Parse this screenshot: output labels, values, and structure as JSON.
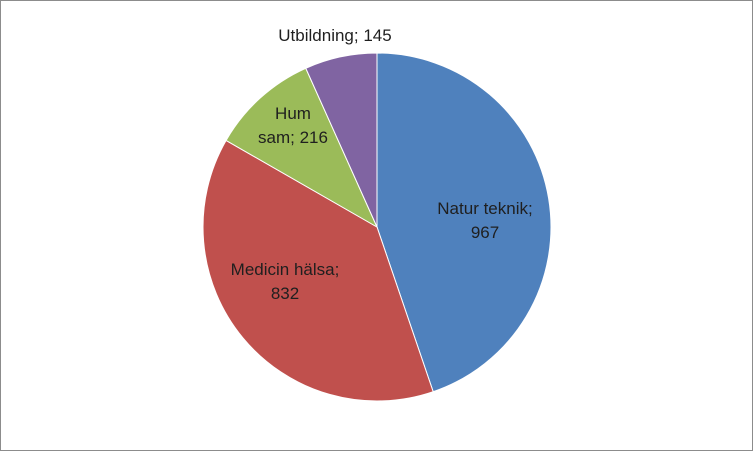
{
  "chart_data": {
    "type": "pie",
    "title": "",
    "slices": [
      {
        "category": "Natur teknik",
        "value": 967,
        "label": "Natur teknik;",
        "value_label": "967",
        "color": "#4F81BD"
      },
      {
        "category": "Medicin hälsa",
        "value": 832,
        "label": "Medicin hälsa;",
        "value_label": "832",
        "color": "#C0504D"
      },
      {
        "category": "Hum sam",
        "value": 216,
        "label": "Hum",
        "value_label": "sam; 216",
        "color": "#9BBB59"
      },
      {
        "category": "Utbildning",
        "value": 145,
        "label": "Utbildning; 145",
        "value_label": "",
        "color": "#8064A2"
      }
    ],
    "start_angle": "12 o'clock",
    "direction": "clockwise",
    "legend": "none",
    "data_labels": "category; value"
  }
}
